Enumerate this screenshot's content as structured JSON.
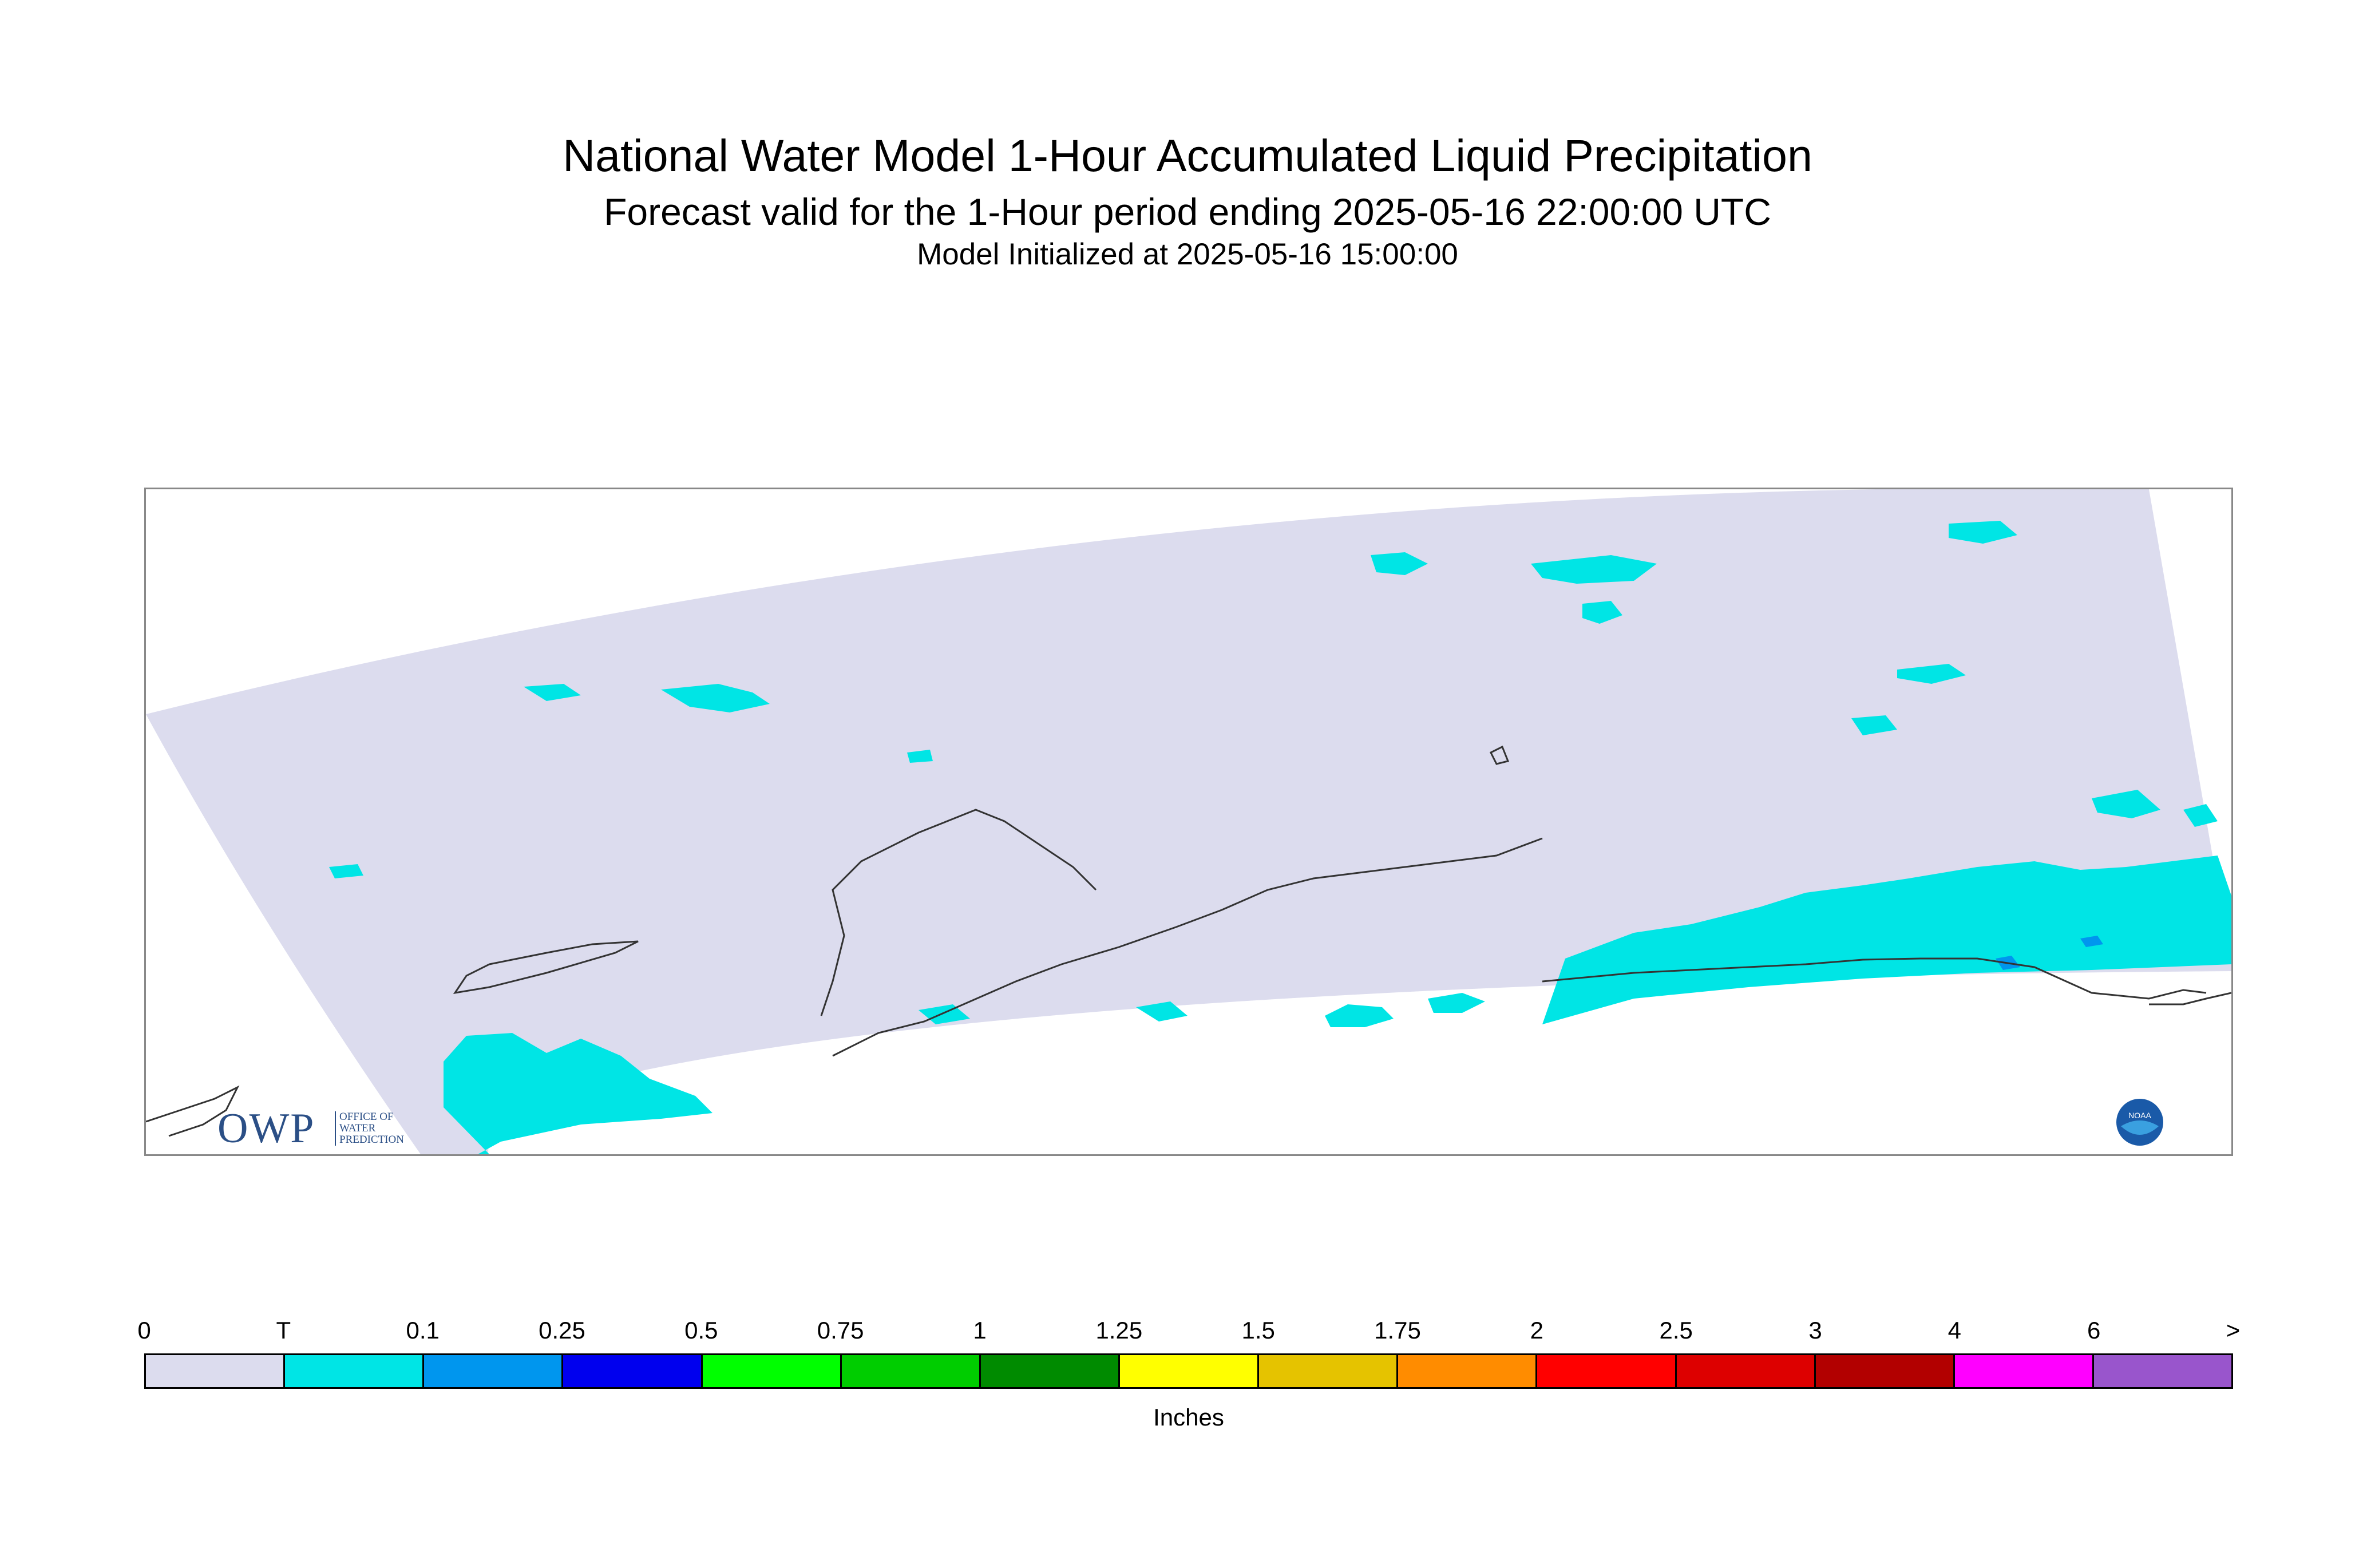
{
  "header": {
    "title": "National Water Model 1-Hour Accumulated Liquid Precipitation",
    "subtitle": "Forecast valid for the 1-Hour period ending 2025-05-16 22:00:00 UTC",
    "initialized": "Model Initialized at 2025-05-16 15:00:00"
  },
  "logos": {
    "owp_main": "OWP",
    "owp_sub": "OFFICE OF WATER PREDICTION",
    "noaa": "NOAA"
  },
  "map": {
    "domain_fill_color": "#dcdcee",
    "trace_color": "#00e5e5",
    "light_blue_color": "#0096ee",
    "coastline_color": "#333333"
  },
  "legend": {
    "tick_labels": [
      "0",
      "T",
      "0.1",
      "0.25",
      "0.5",
      "0.75",
      "1",
      "1.25",
      "1.5",
      "1.75",
      "2",
      "2.5",
      "3",
      "4",
      "6",
      ">"
    ],
    "colors": [
      "#dcdcee",
      "#00e5e5",
      "#0096ee",
      "#0000ee",
      "#00ff00",
      "#00cd00",
      "#008b00",
      "#ffff00",
      "#e5c300",
      "#ff8c00",
      "#ff0000",
      "#dd0000",
      "#b20000",
      "#ff00ff",
      "#9955cc"
    ],
    "units": "Inches"
  }
}
